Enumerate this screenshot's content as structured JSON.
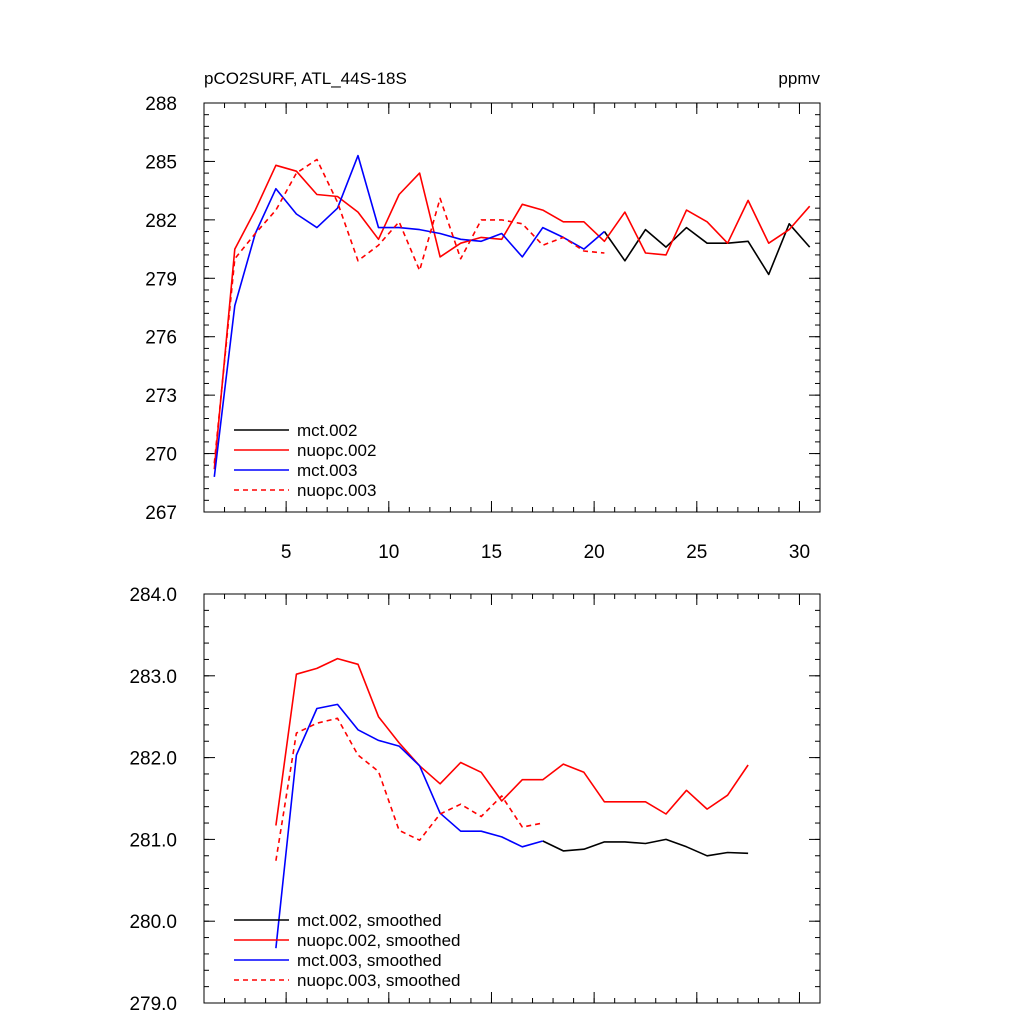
{
  "chart_data": [
    {
      "type": "line",
      "title": "pCO2SURF, ATL_44S-18S",
      "units": "ppmv",
      "xlim": [
        1,
        31
      ],
      "ylim": [
        267,
        288
      ],
      "xticks": [
        5,
        10,
        15,
        20,
        25,
        30
      ],
      "yticks": [
        267,
        270,
        273,
        276,
        279,
        282,
        285,
        288
      ],
      "ytick_labels": [
        "267",
        "270",
        "273",
        "276",
        "279",
        "282",
        "285",
        "288"
      ],
      "series": [
        {
          "name": "mct.002",
          "color": "#000000",
          "dash": "solid",
          "x": [
            20.5,
            21.5,
            22.5,
            23.5,
            24.5,
            25.5,
            26.5,
            27.5,
            28.5,
            29.5,
            30.5
          ],
          "y": [
            281.4,
            279.9,
            281.5,
            280.6,
            281.6,
            280.8,
            280.8,
            280.9,
            279.2,
            281.8,
            280.6
          ]
        },
        {
          "name": "nuopc.002",
          "color": "#ff0000",
          "dash": "solid",
          "x": [
            1.5,
            2.5,
            3.5,
            4.5,
            5.5,
            6.5,
            7.5,
            8.5,
            9.5,
            10.5,
            11.5,
            12.5,
            13.5,
            14.5,
            15.5,
            16.5,
            17.5,
            18.5,
            19.5,
            20.5,
            21.5,
            22.5,
            23.5,
            24.5,
            25.5,
            26.5,
            27.5,
            28.5,
            29.5,
            30.5
          ],
          "y": [
            269.2,
            280.5,
            282.5,
            284.8,
            284.5,
            283.3,
            283.2,
            282.4,
            281.0,
            283.3,
            284.4,
            280.1,
            280.8,
            281.1,
            281.0,
            282.8,
            282.5,
            281.9,
            281.9,
            280.9,
            282.4,
            280.3,
            280.2,
            282.5,
            281.9,
            280.8,
            283.0,
            280.8,
            281.5,
            282.7
          ]
        },
        {
          "name": "mct.003",
          "color": "#0000ff",
          "dash": "solid",
          "x": [
            1.5,
            2.5,
            3.5,
            4.5,
            5.5,
            6.5,
            7.5,
            8.5,
            9.5,
            10.5,
            11.5,
            12.5,
            13.5,
            14.5,
            15.5,
            16.5,
            17.5,
            18.5,
            19.5,
            20.5
          ],
          "y": [
            268.8,
            277.6,
            281.3,
            283.6,
            282.3,
            281.6,
            282.6,
            285.3,
            281.6,
            281.6,
            281.5,
            281.3,
            281.0,
            280.9,
            281.3,
            280.1,
            281.6,
            281.1,
            280.5,
            281.4
          ]
        },
        {
          "name": "nuopc.003",
          "color": "#ff0000",
          "dash": "dashed",
          "x": [
            1.5,
            2.5,
            3.5,
            4.5,
            5.5,
            6.5,
            7.5,
            8.5,
            9.5,
            10.5,
            11.5,
            12.5,
            13.5,
            14.5,
            15.5,
            16.5,
            17.5,
            18.5,
            19.5,
            20.5
          ],
          "y": [
            269.5,
            280.0,
            281.3,
            282.5,
            284.4,
            285.1,
            282.9,
            279.9,
            280.7,
            281.9,
            279.4,
            283.1,
            280.0,
            282.0,
            282.0,
            281.8,
            280.7,
            281.1,
            280.4,
            280.3
          ]
        }
      ]
    },
    {
      "type": "line",
      "title": "",
      "xlim": [
        1,
        31
      ],
      "ylim": [
        279,
        284
      ],
      "xticks": [
        5,
        10,
        15,
        20,
        25,
        30
      ],
      "yticks": [
        279,
        280,
        281,
        282,
        283,
        284
      ],
      "ytick_labels": [
        "279.0",
        "280.0",
        "281.0",
        "282.0",
        "283.0",
        "284.0"
      ],
      "series": [
        {
          "name": "mct.002, smoothed",
          "color": "#000000",
          "dash": "solid",
          "x": [
            17.5,
            18.5,
            19.5,
            20.5,
            21.5,
            22.5,
            23.5,
            24.5,
            25.5,
            26.5,
            27.5
          ],
          "y": [
            280.98,
            280.86,
            280.88,
            280.97,
            280.97,
            280.95,
            281.0,
            280.91,
            280.8,
            280.84,
            280.83
          ]
        },
        {
          "name": "nuopc.002, smoothed",
          "color": "#ff0000",
          "dash": "solid",
          "x": [
            4.5,
            5.5,
            6.5,
            7.5,
            8.5,
            9.5,
            10.5,
            11.5,
            12.5,
            13.5,
            14.5,
            15.5,
            16.5,
            17.5,
            18.5,
            19.5,
            20.5,
            21.5,
            22.5,
            23.5,
            24.5,
            25.5,
            26.5,
            27.5
          ],
          "y": [
            281.17,
            283.02,
            283.09,
            283.21,
            283.14,
            282.5,
            282.18,
            281.9,
            281.68,
            281.94,
            281.82,
            281.47,
            281.73,
            281.73,
            281.92,
            281.82,
            281.46,
            281.46,
            281.46,
            281.31,
            281.6,
            281.37,
            281.54,
            281.91
          ]
        },
        {
          "name": "mct.003, smoothed",
          "color": "#0000ff",
          "dash": "solid",
          "x": [
            4.5,
            5.5,
            6.5,
            7.5,
            8.5,
            9.5,
            10.5,
            11.5,
            12.5,
            13.5,
            14.5,
            15.5,
            16.5,
            17.5
          ],
          "y": [
            279.67,
            282.03,
            282.6,
            282.65,
            282.34,
            282.21,
            282.14,
            281.9,
            281.32,
            281.1,
            281.1,
            281.03,
            280.91,
            280.98
          ]
        },
        {
          "name": "nuopc.003, smoothed",
          "color": "#ff0000",
          "dash": "dashed",
          "x": [
            4.5,
            5.5,
            6.5,
            7.5,
            8.5,
            9.5,
            10.5,
            11.5,
            12.5,
            13.5,
            14.5,
            15.5,
            16.5,
            17.5
          ],
          "y": [
            280.74,
            282.3,
            282.42,
            282.48,
            282.03,
            281.83,
            281.11,
            280.99,
            281.31,
            281.43,
            281.28,
            281.53,
            281.15,
            281.2
          ]
        }
      ]
    }
  ]
}
